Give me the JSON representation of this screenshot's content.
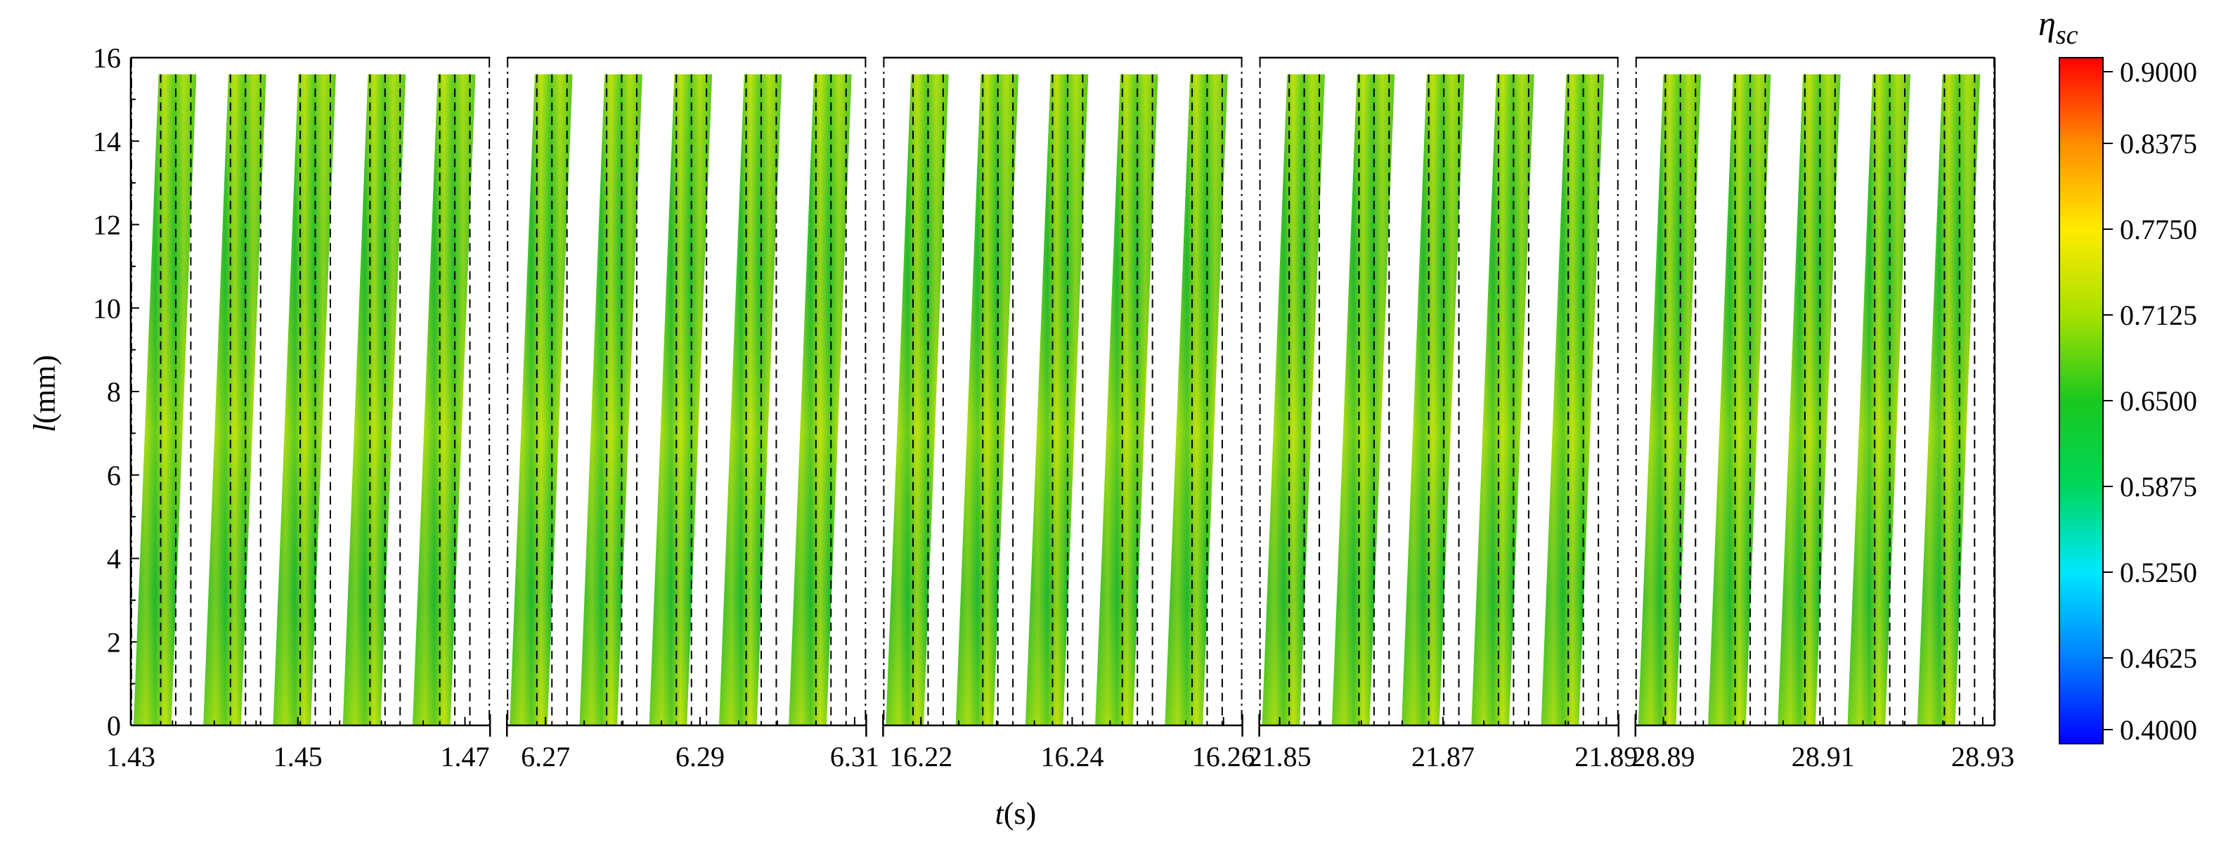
{
  "chart_data": {
    "type": "heatmap",
    "xlabel": {
      "main": "t",
      "unit": "(s)"
    },
    "ylabel": {
      "main": "l",
      "unit": "(mm)"
    },
    "ylim": [
      0,
      16
    ],
    "y_ticks": [
      "0",
      "2",
      "4",
      "6",
      "8",
      "10",
      "12",
      "14",
      "16"
    ],
    "panels": [
      {
        "ticks": [
          "1.43",
          "1.45",
          "1.47"
        ],
        "xlim": [
          1.43,
          1.473
        ],
        "stripe_count": 5
      },
      {
        "ticks": [
          "6.27",
          "6.29",
          "6.31"
        ],
        "xlim": [
          6.265,
          6.3115
        ],
        "stripe_count": 5
      },
      {
        "ticks": [
          "16.22",
          "16.24",
          "16.26"
        ],
        "xlim": [
          16.215,
          16.2625
        ],
        "stripe_count": 5
      },
      {
        "ticks": [
          "21.85",
          "21.87",
          "21.89"
        ],
        "xlim": [
          21.8475,
          21.8915
        ],
        "stripe_count": 5
      },
      {
        "ticks": [
          "28.89",
          "28.91",
          "28.93"
        ],
        "xlim": [
          28.8865,
          28.9315
        ],
        "stripe_count": 5
      }
    ],
    "colorbar": {
      "title_main": "η",
      "title_sub": "sc",
      "range": [
        0.4,
        0.9
      ],
      "ticks": [
        "0.4000",
        "0.4625",
        "0.5250",
        "0.5875",
        "0.6500",
        "0.7125",
        "0.7750",
        "0.8375",
        "0.9000"
      ]
    },
    "value_range_in_stripes": [
      0.6,
      0.79
    ]
  }
}
